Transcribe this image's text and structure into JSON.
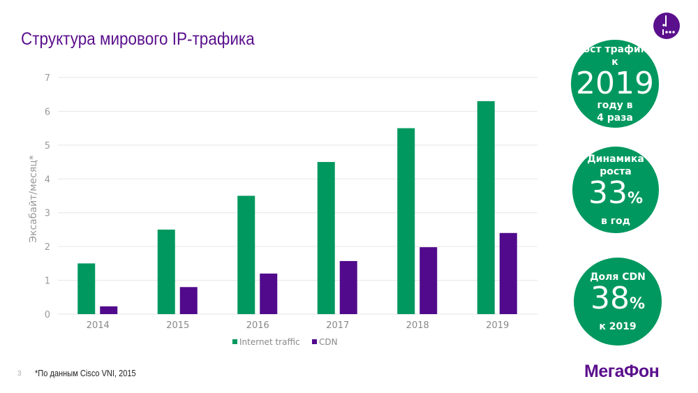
{
  "slide": {
    "title": "Структура мирового IP-трафика",
    "page_number": "3",
    "footnote": "*По данным Cisco VNI, 2015",
    "brand": "МегаФон"
  },
  "colors": {
    "green": "#00985f",
    "purple": "#510a8c"
  },
  "icons": {
    "logo": "megafon-logo-icon"
  },
  "circles": [
    {
      "line1": "Рост трафика",
      "line2": "к",
      "big": "2019",
      "line3": "году в",
      "line4": "4 раза"
    },
    {
      "line1": "Динамика",
      "line2": "роста",
      "big": "33",
      "suffix": "%",
      "line3": "в год"
    },
    {
      "line1": "Доля CDN",
      "big": "38",
      "suffix": "%",
      "line3": "к 2019"
    }
  ],
  "chart_data": {
    "type": "bar",
    "categories": [
      "2014",
      "2015",
      "2016",
      "2017",
      "2018",
      "2019"
    ],
    "series": [
      {
        "name": "Internet traffic",
        "values": [
          1.5,
          2.5,
          3.5,
          4.5,
          5.5,
          6.3
        ],
        "color": "#00985f"
      },
      {
        "name": "CDN",
        "values": [
          0.23,
          0.8,
          1.2,
          1.57,
          1.98,
          2.4
        ],
        "color": "#510a8c"
      }
    ],
    "ylabel": "Эксабайт/месяц*",
    "ylim": [
      0,
      7
    ],
    "yticks": [
      "0",
      "1",
      "2",
      "3",
      "4",
      "5",
      "6",
      "7"
    ],
    "grid": true,
    "legend": "bottom"
  }
}
